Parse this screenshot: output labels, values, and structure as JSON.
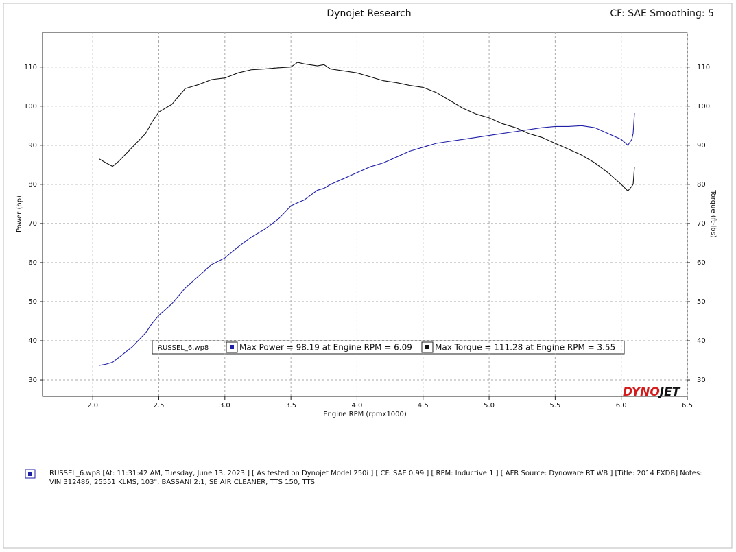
{
  "chart_data": {
    "type": "line",
    "title": "Dynojet Research",
    "subtitle": "CF: SAE Smoothing: 5",
    "x_label": "Engine RPM (rpmx1000)",
    "y_label": "Power (hp)",
    "y2_label": "Torque (ft-lbs)",
    "legend_title": "RUSSEL_6.wp8",
    "logo_parts": [
      "DYNO",
      "JET"
    ],
    "notes": "RUSSEL_6.wp8 [At: 11:31:42 AM, Tuesday, June 13, 2023 ] [ As tested on Dynojet Model 250i ] [ CF: SAE 0.99 ] [ RPM: Inductive 1 ] [ AFR Source: Dynoware RT WB ] [Title: 2014 FXDB] Notes: VIN 312486, 25551 KLMS, 103\", BASSANI 2:1, SE AIR CLEANER, TTS 150, TTS",
    "x": [
      2.05,
      2.1,
      2.15,
      2.2,
      2.3,
      2.4,
      2.45,
      2.5,
      2.6,
      2.7,
      2.8,
      2.9,
      3.0,
      3.1,
      3.2,
      3.3,
      3.4,
      3.5,
      3.55,
      3.6,
      3.7,
      3.75,
      3.8,
      3.9,
      4.0,
      4.1,
      4.2,
      4.3,
      4.4,
      4.5,
      4.6,
      4.7,
      4.8,
      4.9,
      5.0,
      5.1,
      5.2,
      5.3,
      5.4,
      5.5,
      5.6,
      5.7,
      5.8,
      5.9,
      6.0,
      6.05,
      6.08,
      6.09,
      6.1
    ],
    "series": [
      {
        "name": "Max Power = 98.19 at Engine RPM = 6.09",
        "color": "#1f1fa8",
        "axis": "y",
        "values": [
          33.7,
          34,
          34.5,
          35.8,
          38.5,
          42,
          44.5,
          46.5,
          49.5,
          53.5,
          56.5,
          59.5,
          61.2,
          64,
          66.5,
          68.5,
          71,
          74.5,
          75.3,
          76,
          78.5,
          79,
          80,
          81.5,
          83,
          84.5,
          85.5,
          87,
          88.5,
          89.5,
          90.5,
          91,
          91.5,
          92,
          92.5,
          93,
          93.5,
          94,
          94.5,
          94.8,
          94.8,
          95,
          94.5,
          93,
          91.5,
          90,
          91.5,
          93,
          98.2
        ]
      },
      {
        "name": "Max Torque = 111.28 at Engine RPM = 3.55",
        "color": "#111111",
        "axis": "y2",
        "values": [
          86.5,
          85.5,
          84.6,
          86,
          89.5,
          93,
          96,
          98.5,
          100.5,
          104.5,
          105.5,
          106.8,
          107.2,
          108.5,
          109.3,
          109.5,
          109.8,
          110,
          111.2,
          110.8,
          110.3,
          110.6,
          109.5,
          109,
          108.5,
          107.5,
          106.5,
          106,
          105.3,
          104.8,
          103.5,
          101.5,
          99.5,
          98,
          97,
          95.5,
          94.5,
          93,
          92,
          90.5,
          89,
          87.5,
          85.5,
          83,
          80,
          78.3,
          79.5,
          80,
          84.5
        ]
      }
    ],
    "xlim": [
      1.62,
      6.5
    ],
    "xticks": [
      {
        "value": 2,
        "label": "2.0"
      },
      2.5,
      {
        "value": 3,
        "label": "3.0"
      },
      3.5,
      {
        "value": 4,
        "label": "4.0"
      },
      4.5,
      {
        "value": 5,
        "label": "5.0"
      },
      5.5,
      {
        "value": 6,
        "label": "6.0"
      },
      6.5
    ],
    "ylim": [
      25.8,
      118.9
    ],
    "yticks": [
      30,
      40,
      50,
      60,
      70,
      80,
      90,
      100,
      110
    ],
    "y2lim": [
      25.8,
      118.9
    ],
    "y2ticks": [
      30,
      40,
      50,
      60,
      70,
      80,
      90,
      100,
      110
    ],
    "grid": true
  }
}
